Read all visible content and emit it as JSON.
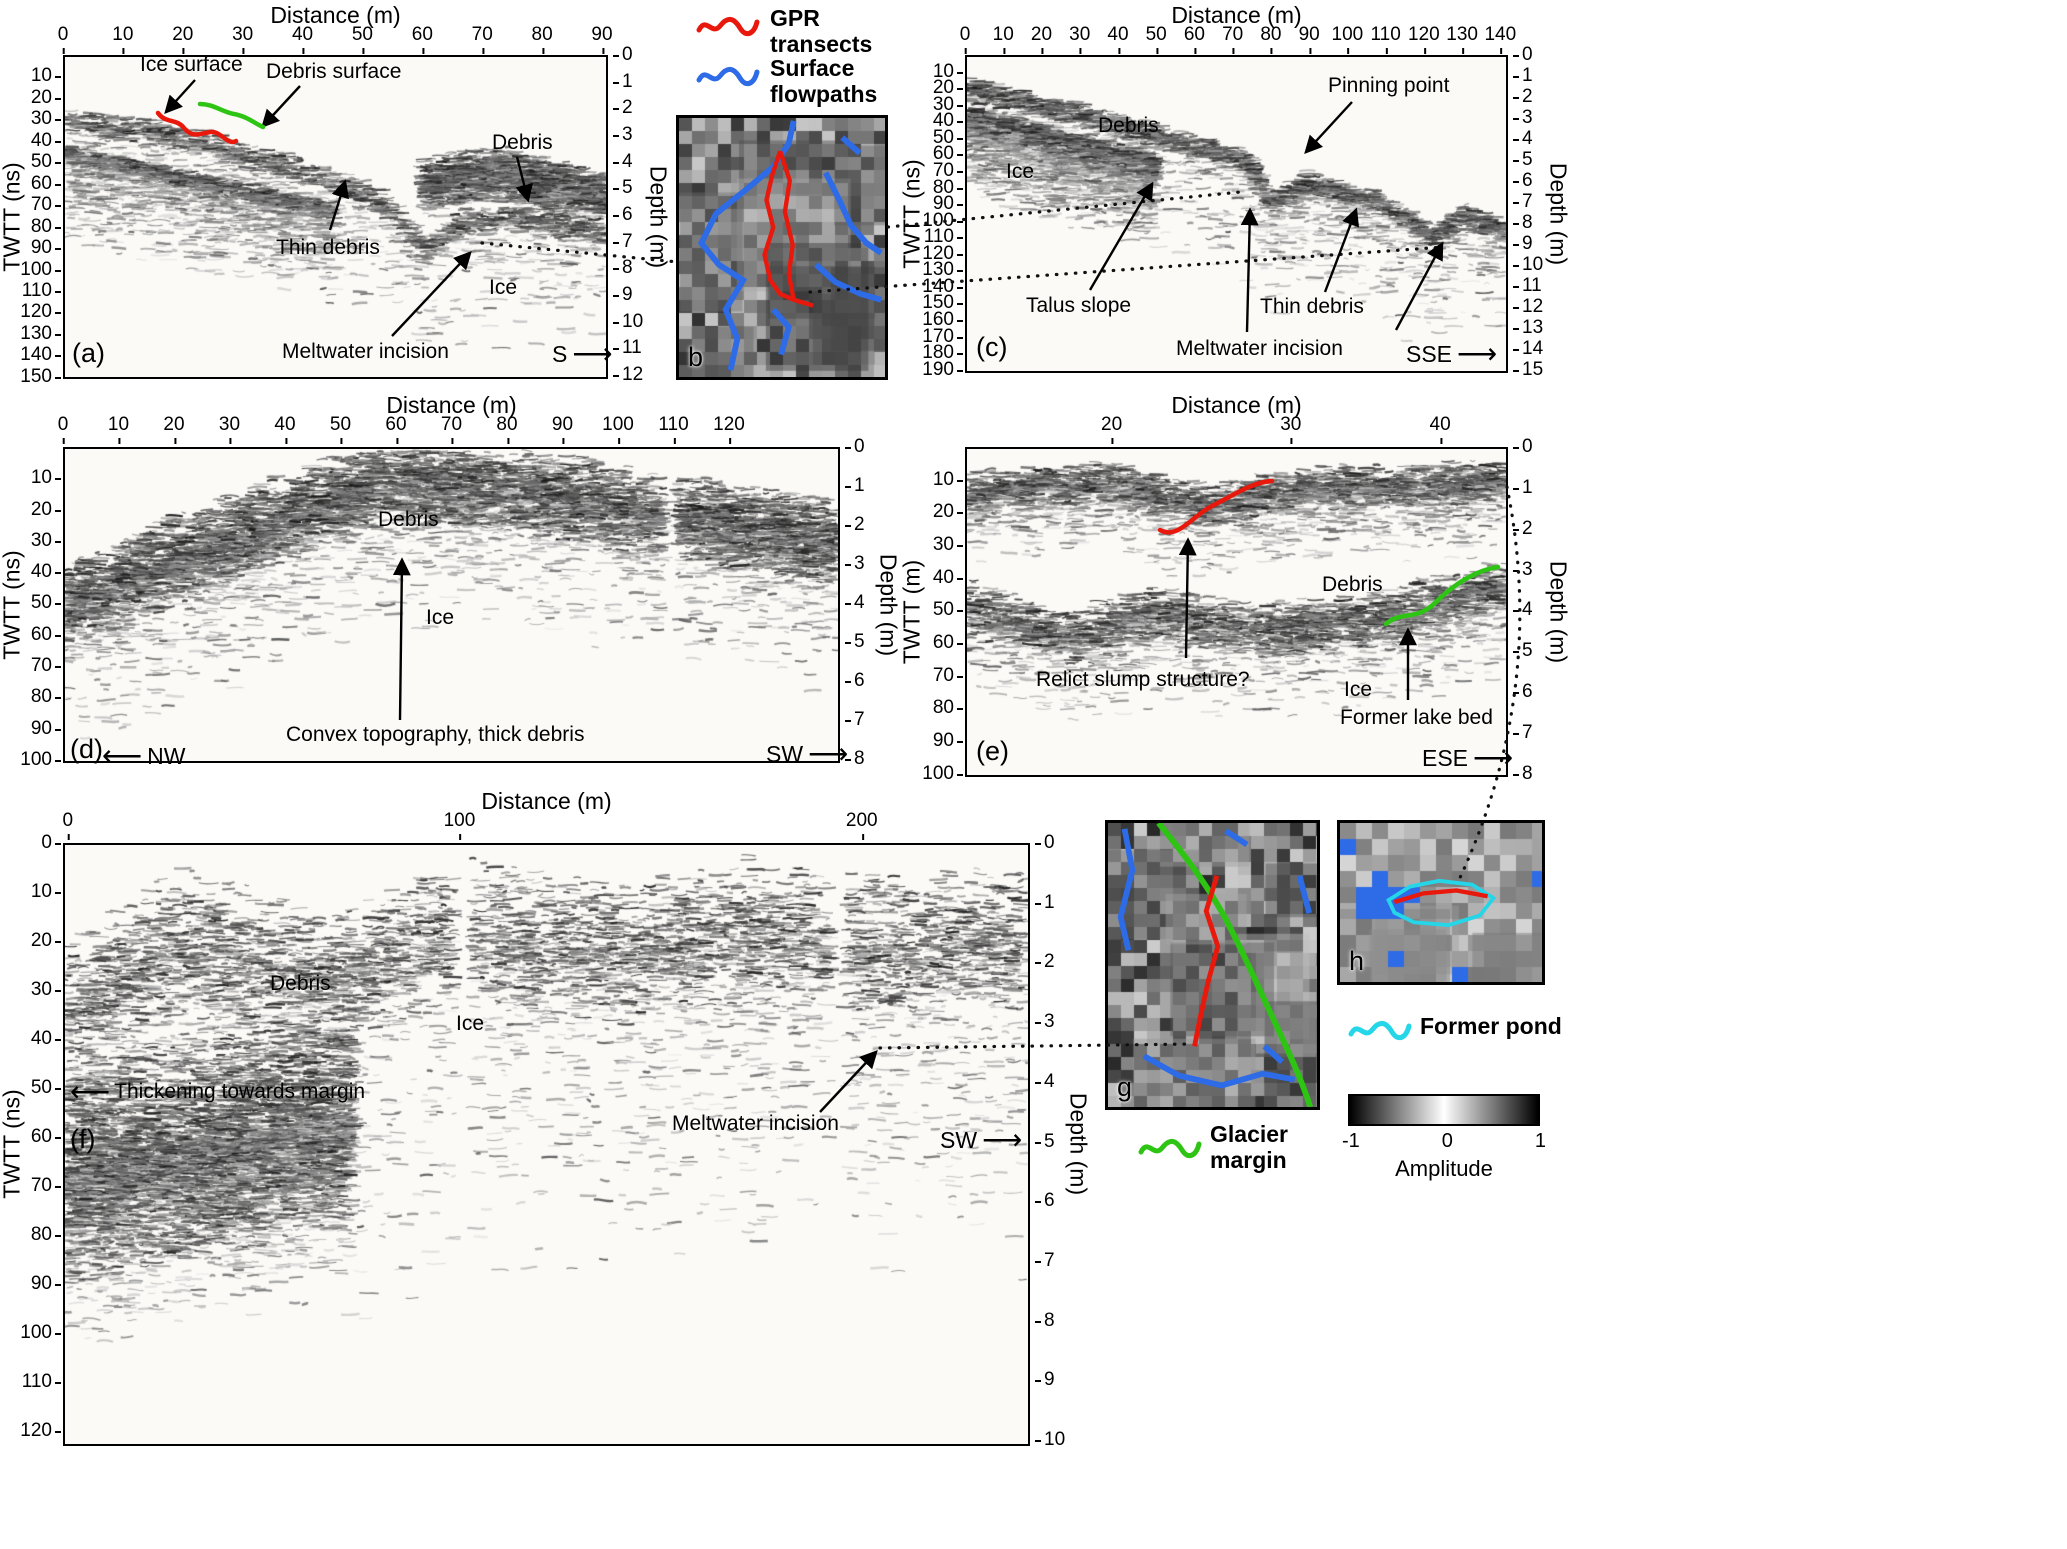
{
  "colors": {
    "gpr_transect": "#e8190c",
    "surface_flowpath": "#2e6be6",
    "glacier_margin": "#2ec414",
    "former_pond": "#25d6e8",
    "annotation": "#000000"
  },
  "legend": {
    "gpr": "GPR transects",
    "flowpaths": "Surface flowpaths",
    "pond": "Former pond",
    "margin": "Glacier margin",
    "colorbar": {
      "min": "-1",
      "mid": "0",
      "max": "1",
      "title": "Amplitude"
    }
  },
  "chart_data": [
    {
      "id": "a",
      "type": "radargram-heatmap",
      "panel_label": "(a)",
      "x": {
        "label": "Distance (m)",
        "ticks": [
          0,
          10,
          20,
          30,
          40,
          50,
          60,
          70,
          80,
          90
        ],
        "min": 0,
        "max": 91
      },
      "y_left": {
        "label": "TWTT (ns)",
        "ticks": [
          10,
          20,
          30,
          40,
          50,
          60,
          70,
          80,
          90,
          100,
          110,
          120,
          130,
          140,
          150
        ],
        "min": 0,
        "max": 151
      },
      "y_right": {
        "label": "Depth (m)",
        "ticks": [
          0,
          1,
          2,
          3,
          4,
          5,
          6,
          7,
          8,
          9,
          10,
          11,
          12
        ],
        "min": 0,
        "max": 12.15
      },
      "direction_right": "S",
      "annotations": {
        "ice_surface": "Ice surface",
        "debris_surface": "Debris surface",
        "debris": "Debris",
        "thin_debris": "Thin debris",
        "ice": "Ice",
        "meltwater": "Meltwater incision"
      }
    },
    {
      "id": "b",
      "type": "map-inset",
      "panel_label": "b",
      "overlays": [
        "GPR transects",
        "Surface flowpaths"
      ]
    },
    {
      "id": "c",
      "type": "radargram-heatmap",
      "panel_label": "(c)",
      "x": {
        "label": "Distance (m)",
        "ticks": [
          0,
          10,
          20,
          30,
          40,
          50,
          60,
          70,
          80,
          90,
          100,
          110,
          120,
          130,
          140
        ],
        "min": 0,
        "max": 142
      },
      "y_left": {
        "label": "TWTT (ns)",
        "ticks": [
          10,
          20,
          30,
          40,
          50,
          60,
          70,
          80,
          90,
          100,
          110,
          120,
          130,
          140,
          150,
          160,
          170,
          180,
          190
        ],
        "min": 0,
        "max": 192
      },
      "y_right": {
        "label": "Depth (m)",
        "ticks": [
          0,
          1,
          2,
          3,
          4,
          5,
          6,
          7,
          8,
          9,
          10,
          11,
          12,
          13,
          14,
          15
        ],
        "min": 0,
        "max": 15.15
      },
      "direction_right": "SSE",
      "annotations": {
        "pinning": "Pinning point",
        "debris": "Debris",
        "ice": "Ice",
        "talus": "Talus slope",
        "meltwater": "Meltwater incision",
        "thin_debris": "Thin debris"
      }
    },
    {
      "id": "d",
      "type": "radargram-heatmap",
      "panel_label": "(d)",
      "x": {
        "label": "Distance (m)",
        "ticks": [
          0,
          10,
          20,
          30,
          40,
          50,
          60,
          70,
          80,
          90,
          100,
          110,
          120
        ],
        "min": 0,
        "max": 140
      },
      "y_left": {
        "label": "TWTT (ns)",
        "ticks": [
          10,
          20,
          30,
          40,
          50,
          60,
          70,
          80,
          90,
          100
        ],
        "min": 0,
        "max": 101
      },
      "y_right": {
        "label": "Depth (m)",
        "ticks": [
          0,
          1,
          2,
          3,
          4,
          5,
          6,
          7,
          8
        ],
        "min": 0,
        "max": 8.1
      },
      "direction_left": "NW",
      "direction_right": "SW",
      "annotations": {
        "debris": "Debris",
        "ice": "Ice",
        "convex": "Convex topography, thick debris"
      }
    },
    {
      "id": "e",
      "type": "radargram-heatmap",
      "panel_label": "(e)",
      "x": {
        "label": "Distance (m)",
        "ticks": [
          20,
          30,
          40
        ],
        "tick_pos": [
          0.27,
          0.6,
          0.875
        ]
      },
      "y_left": {
        "label": "TWTT (m)",
        "ticks": [
          10,
          20,
          30,
          40,
          50,
          60,
          70,
          80,
          90,
          100
        ],
        "min": 0,
        "max": 101
      },
      "y_right": {
        "label": "Depth (m)",
        "ticks": [
          0,
          1,
          2,
          3,
          4,
          5,
          6,
          7,
          8
        ],
        "min": 0,
        "max": 8.08
      },
      "direction_right": "ESE",
      "annotations": {
        "slump": "Relict slump structure?",
        "debris": "Debris",
        "ice": "Ice",
        "lakebed": "Former lake bed"
      }
    },
    {
      "id": "f",
      "type": "radargram-heatmap",
      "panel_label": "(f)",
      "x": {
        "label": "Distance (m)",
        "ticks": [
          0,
          100,
          200
        ],
        "tick_pos": [
          0.005,
          0.41,
          0.826
        ]
      },
      "y_left": {
        "label": "TWTT (ns)",
        "ticks": [
          0,
          10,
          20,
          30,
          40,
          50,
          60,
          70,
          80,
          90,
          100,
          110,
          120
        ],
        "min": 0,
        "max": 123
      },
      "y_right": {
        "label": "Depth (m)",
        "ticks": [
          0,
          1,
          2,
          3,
          4,
          5,
          6,
          7,
          8,
          9,
          10
        ],
        "min": 0,
        "max": 10.1
      },
      "direction_right": "SW",
      "annotations": {
        "debris": "Debris",
        "ice": "Ice",
        "thickening": "Thickening towards margin",
        "meltwater": "Meltwater incision"
      }
    },
    {
      "id": "g",
      "type": "map-inset",
      "panel_label": "g",
      "overlays": [
        "Glacier margin",
        "GPR transects",
        "Surface flowpaths"
      ]
    },
    {
      "id": "h",
      "type": "map-inset",
      "panel_label": "h",
      "overlays": [
        "Former pond",
        "GPR transects",
        "Surface flowpaths"
      ]
    }
  ]
}
